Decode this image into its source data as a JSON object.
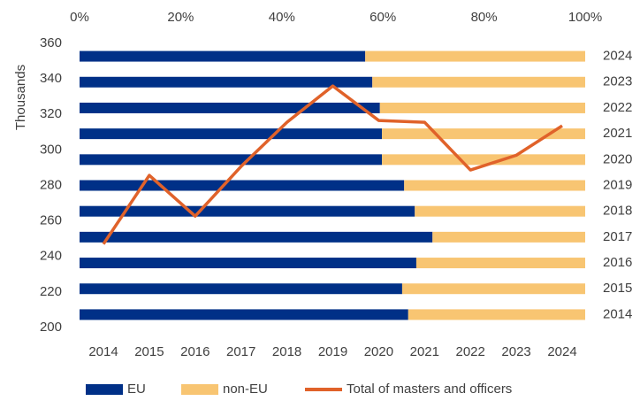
{
  "chart_data": {
    "type": "bar-line",
    "categories": [
      "2014",
      "2015",
      "2016",
      "2017",
      "2018",
      "2019",
      "2020",
      "2021",
      "2022",
      "2023",
      "2024"
    ],
    "series": [
      {
        "name": "EU",
        "color": "#003087",
        "kind": "bar",
        "values": [
          65.0,
          63.8,
          66.6,
          69.8,
          66.3,
          64.2,
          59.8,
          59.8,
          59.4,
          57.9,
          56.5
        ]
      },
      {
        "name": "non-EU",
        "color": "#f8c572",
        "kind": "bar",
        "values": [
          35.0,
          36.2,
          33.4,
          30.2,
          33.7,
          35.8,
          40.2,
          40.2,
          40.6,
          42.1,
          43.5
        ]
      },
      {
        "name": "Total of masters and officers",
        "color": "#e0622a",
        "kind": "line",
        "values": [
          247,
          285.7,
          262.7,
          290.7,
          315.6,
          336,
          316.6,
          315.6,
          288.7,
          297,
          313.6
        ]
      }
    ],
    "ylabel": "Thousands",
    "ylim": [
      200,
      360
    ],
    "yticks": [
      200,
      220,
      240,
      260,
      280,
      300,
      320,
      340,
      360
    ],
    "xlim": [
      0,
      100
    ],
    "xticks": [
      {
        "value": 0,
        "label": "0%"
      },
      {
        "value": 20,
        "label": "20%"
      },
      {
        "value": 40,
        "label": "40%"
      },
      {
        "value": 60,
        "label": "60%"
      },
      {
        "value": 80,
        "label": "80%"
      },
      {
        "value": 100,
        "label": "100%"
      }
    ],
    "legend": "bottom"
  }
}
